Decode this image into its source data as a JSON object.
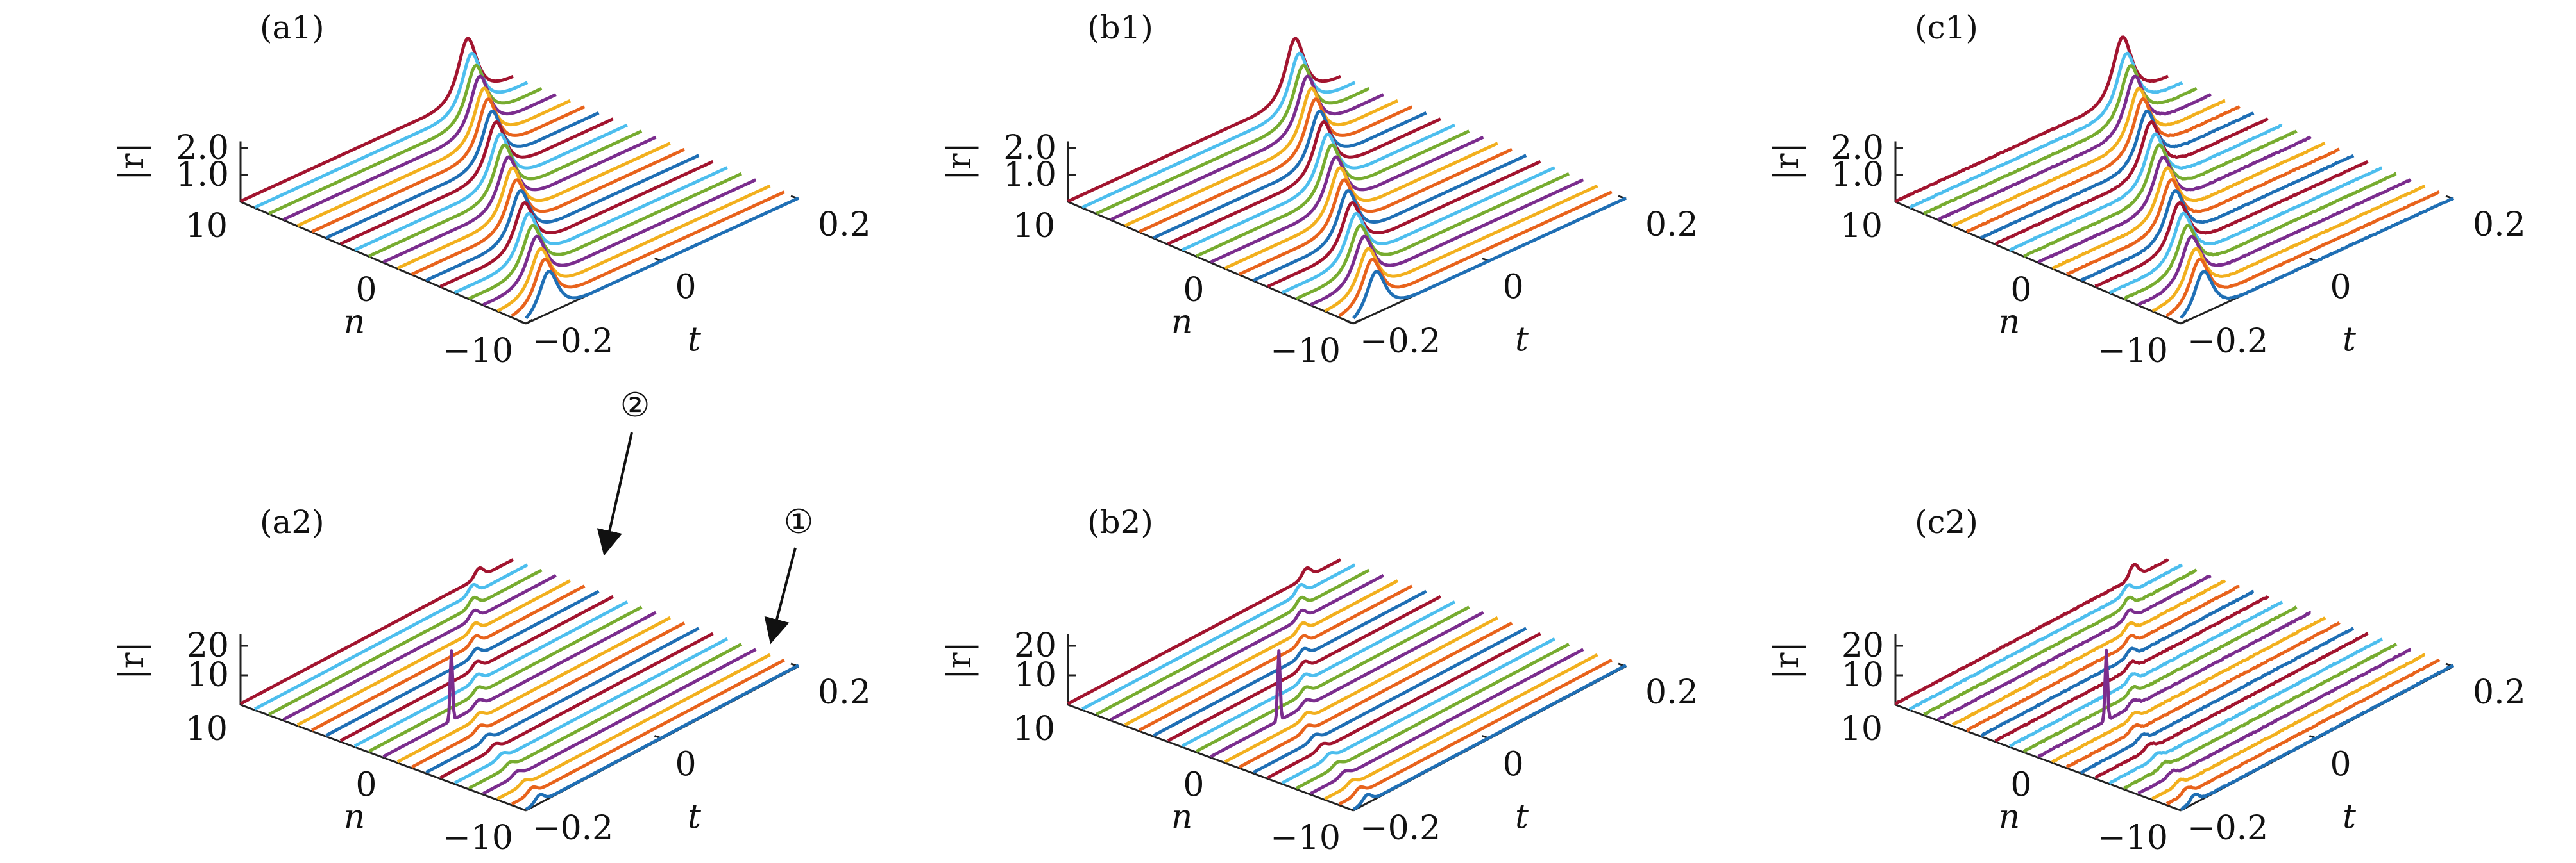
{
  "figure": {
    "series_colors": [
      "#1f6fb5",
      "#e8631c",
      "#f2b01e",
      "#7b2d8e",
      "#77ac30",
      "#4dbeee",
      "#a2142f"
    ],
    "series_count": 21
  },
  "chart_data": [
    {
      "id": "a1",
      "panel_label": "(a1)",
      "type": "line",
      "kind": "3d-waterfall",
      "z_label": "|r|",
      "x_label": "n",
      "y_label": "t",
      "n_range": [
        -10,
        10
      ],
      "t_range": [
        -0.2,
        0.2
      ],
      "z_ticks": [
        1.0,
        2.0
      ],
      "z_tick_labels": [
        "1.0",
        "2.0"
      ],
      "n_tick_labels": [
        "10",
        "0",
        "−10"
      ],
      "t_tick_labels": [
        "−0.2",
        "0",
        "0.2"
      ],
      "n_values": [
        -10,
        -9,
        -8,
        -7,
        -6,
        -5,
        -4,
        -3,
        -2,
        -1,
        0,
        1,
        2,
        3,
        4,
        5,
        6,
        7,
        8,
        9,
        10
      ],
      "peak_t": [
        -0.167,
        -0.152,
        -0.137,
        -0.122,
        -0.107,
        -0.092,
        -0.077,
        -0.062,
        -0.047,
        -0.032,
        -0.017,
        -0.002,
        0.013,
        0.028,
        0.043,
        0.058,
        0.073,
        0.088,
        0.103,
        0.118,
        0.133
      ],
      "peak_r": [
        1.55,
        1.6,
        1.6,
        1.65,
        1.65,
        1.7,
        1.7,
        1.75,
        1.75,
        1.8,
        1.8,
        1.85,
        1.85,
        1.9,
        1.9,
        1.95,
        1.95,
        2.0,
        2.0,
        2.05,
        2.2
      ],
      "noise": false
    },
    {
      "id": "b1",
      "panel_label": "(b1)",
      "type": "line",
      "kind": "3d-waterfall",
      "z_label": "|r|",
      "x_label": "n",
      "y_label": "t",
      "n_range": [
        -10,
        10
      ],
      "t_range": [
        -0.2,
        0.2
      ],
      "z_ticks": [
        1.0,
        2.0
      ],
      "z_tick_labels": [
        "1.0",
        "2.0"
      ],
      "n_tick_labels": [
        "10",
        "0",
        "−10"
      ],
      "t_tick_labels": [
        "−0.2",
        "0",
        "0.2"
      ],
      "n_values": [
        -10,
        -9,
        -8,
        -7,
        -6,
        -5,
        -4,
        -3,
        -2,
        -1,
        0,
        1,
        2,
        3,
        4,
        5,
        6,
        7,
        8,
        9,
        10
      ],
      "peak_t": [
        -0.167,
        -0.152,
        -0.137,
        -0.122,
        -0.107,
        -0.092,
        -0.077,
        -0.062,
        -0.047,
        -0.032,
        -0.017,
        -0.002,
        0.013,
        0.028,
        0.043,
        0.058,
        0.073,
        0.088,
        0.103,
        0.118,
        0.133
      ],
      "peak_r": [
        1.55,
        1.6,
        1.6,
        1.65,
        1.65,
        1.7,
        1.7,
        1.75,
        1.75,
        1.8,
        1.8,
        1.85,
        1.85,
        1.9,
        1.9,
        1.95,
        1.95,
        2.0,
        2.0,
        2.05,
        2.2
      ],
      "noise": false
    },
    {
      "id": "c1",
      "panel_label": "(c1)",
      "type": "line",
      "kind": "3d-waterfall",
      "z_label": "|r|",
      "x_label": "n",
      "y_label": "t",
      "n_range": [
        -10,
        10
      ],
      "t_range": [
        -0.2,
        0.2
      ],
      "z_ticks": [
        1.0,
        2.0
      ],
      "z_tick_labels": [
        "1.0",
        "2.0"
      ],
      "n_tick_labels": [
        "10",
        "0",
        "−10"
      ],
      "t_tick_labels": [
        "−0.2",
        "0",
        "0.2"
      ],
      "n_values": [
        -10,
        -9,
        -8,
        -7,
        -6,
        -5,
        -4,
        -3,
        -2,
        -1,
        0,
        1,
        2,
        3,
        4,
        5,
        6,
        7,
        8,
        9,
        10
      ],
      "peak_t": [
        -0.167,
        -0.152,
        -0.137,
        -0.122,
        -0.107,
        -0.092,
        -0.077,
        -0.062,
        -0.047,
        -0.032,
        -0.017,
        -0.002,
        0.013,
        0.028,
        0.043,
        0.058,
        0.073,
        0.088,
        0.103,
        0.118,
        0.133
      ],
      "peak_r": [
        1.55,
        1.6,
        1.6,
        1.65,
        1.65,
        1.7,
        1.7,
        1.75,
        1.75,
        1.8,
        1.8,
        1.85,
        1.85,
        1.9,
        1.9,
        1.95,
        1.95,
        2.0,
        2.0,
        2.05,
        2.25
      ],
      "noise": true
    },
    {
      "id": "a2",
      "panel_label": "(a2)",
      "type": "line",
      "kind": "3d-waterfall",
      "z_label": "|r|",
      "x_label": "n",
      "y_label": "t",
      "n_range": [
        -10,
        10
      ],
      "t_range": [
        -0.2,
        0.2
      ],
      "z_ticks": [
        10,
        20
      ],
      "z_tick_labels": [
        "10",
        "20"
      ],
      "n_tick_labels": [
        "10",
        "0",
        "−10"
      ],
      "t_tick_labels": [
        "−0.2",
        "0",
        "0.2"
      ],
      "n_values": [
        -10,
        -9,
        -8,
        -7,
        -6,
        -5,
        -4,
        -3,
        -2,
        -1,
        0,
        1,
        2,
        3,
        4,
        5,
        6,
        7,
        8,
        9,
        10
      ],
      "bump_t": [
        -0.18,
        -0.17,
        -0.16,
        -0.15,
        -0.14,
        -0.13,
        -0.12,
        -0.11,
        -0.1,
        -0.08,
        -0.06,
        -0.04,
        -0.02,
        0.0,
        0.02,
        0.04,
        0.06,
        0.08,
        0.1,
        0.12,
        0.15
      ],
      "bump_r": [
        2.5,
        2.0,
        1.5,
        1.5,
        1.5,
        1.6,
        1.7,
        1.8,
        1.9,
        2.0,
        2.1,
        2.2,
        2.3,
        2.4,
        2.5,
        2.6,
        2.7,
        2.8,
        2.9,
        3.0,
        3.2
      ],
      "spike": {
        "n": 0,
        "t": -0.1,
        "r": 24
      },
      "noise": false,
      "annotations": [
        {
          "label": "②",
          "target": "hump on n = 10 near t = 0"
        },
        {
          "label": "①",
          "target": "peak on n = 10 near t = 0.15"
        }
      ]
    },
    {
      "id": "b2",
      "panel_label": "(b2)",
      "type": "line",
      "kind": "3d-waterfall",
      "z_label": "|r|",
      "x_label": "n",
      "y_label": "t",
      "n_range": [
        -10,
        10
      ],
      "t_range": [
        -0.2,
        0.2
      ],
      "z_ticks": [
        10,
        20
      ],
      "z_tick_labels": [
        "10",
        "20"
      ],
      "n_tick_labels": [
        "10",
        "0",
        "−10"
      ],
      "t_tick_labels": [
        "−0.2",
        "0",
        "0.2"
      ],
      "n_values": [
        -10,
        -9,
        -8,
        -7,
        -6,
        -5,
        -4,
        -3,
        -2,
        -1,
        0,
        1,
        2,
        3,
        4,
        5,
        6,
        7,
        8,
        9,
        10
      ],
      "bump_t": [
        -0.18,
        -0.17,
        -0.16,
        -0.15,
        -0.14,
        -0.13,
        -0.12,
        -0.11,
        -0.1,
        -0.08,
        -0.06,
        -0.04,
        -0.02,
        0.0,
        0.02,
        0.04,
        0.06,
        0.08,
        0.1,
        0.12,
        0.15
      ],
      "bump_r": [
        2.5,
        2.0,
        1.5,
        1.5,
        1.5,
        1.6,
        1.7,
        1.8,
        1.9,
        2.0,
        2.1,
        2.2,
        2.3,
        2.4,
        2.5,
        2.6,
        2.7,
        2.8,
        2.9,
        3.0,
        3.2
      ],
      "spike": {
        "n": 0,
        "t": -0.1,
        "r": 24
      },
      "noise": false
    },
    {
      "id": "c2",
      "panel_label": "(c2)",
      "type": "line",
      "kind": "3d-waterfall",
      "z_label": "|r|",
      "x_label": "n",
      "y_label": "t",
      "n_range": [
        -10,
        10
      ],
      "t_range": [
        -0.2,
        0.2
      ],
      "z_ticks": [
        10,
        20
      ],
      "z_tick_labels": [
        "10",
        "20"
      ],
      "n_tick_labels": [
        "10",
        "0",
        "−10"
      ],
      "t_tick_labels": [
        "−0.2",
        "0",
        "0.2"
      ],
      "n_values": [
        -10,
        -9,
        -8,
        -7,
        -6,
        -5,
        -4,
        -3,
        -2,
        -1,
        0,
        1,
        2,
        3,
        4,
        5,
        6,
        7,
        8,
        9,
        10
      ],
      "bump_t": [
        -0.18,
        -0.17,
        -0.16,
        -0.15,
        -0.14,
        -0.13,
        -0.12,
        -0.11,
        -0.1,
        -0.08,
        -0.06,
        -0.04,
        -0.02,
        0.0,
        0.02,
        0.04,
        0.06,
        0.08,
        0.1,
        0.12,
        0.15
      ],
      "bump_r": [
        2.5,
        2.0,
        1.5,
        1.5,
        1.5,
        1.6,
        1.7,
        1.8,
        1.9,
        2.0,
        2.1,
        2.2,
        2.3,
        2.4,
        2.5,
        2.6,
        2.7,
        2.8,
        2.9,
        3.0,
        4.5
      ],
      "spike": {
        "n": 0,
        "t": -0.1,
        "r": 24
      },
      "noise": true
    }
  ]
}
